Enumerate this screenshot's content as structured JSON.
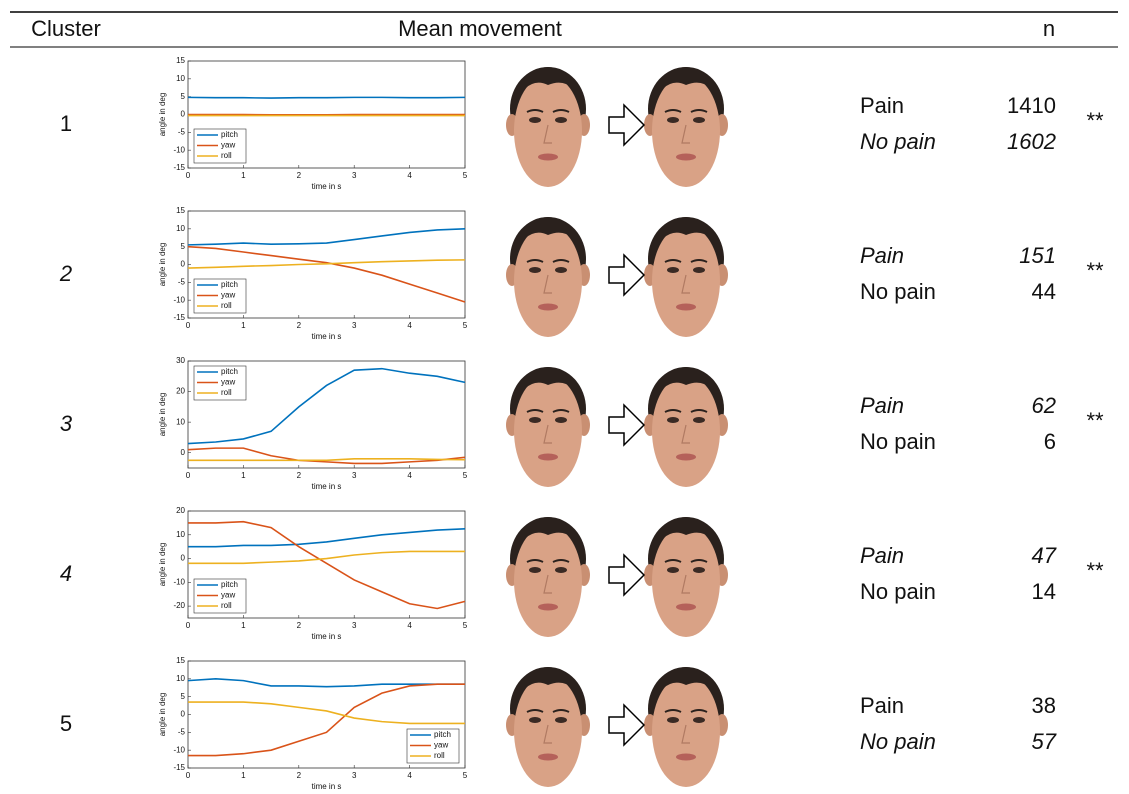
{
  "header": {
    "cluster": "Cluster",
    "movement": "Mean movement",
    "n": "n"
  },
  "table": {
    "rows": [
      {
        "cluster": "1",
        "groups": [
          {
            "label": "Pain",
            "n": 1410
          },
          {
            "label": "No pain",
            "n": 1602
          }
        ],
        "significance": "**"
      },
      {
        "cluster": "2",
        "groups": [
          {
            "label": "Pain",
            "n": 151
          },
          {
            "label": "No pain",
            "n": 44
          }
        ],
        "significance": "**"
      },
      {
        "cluster": "3",
        "groups": [
          {
            "label": "Pain",
            "n": 62
          },
          {
            "label": "No pain",
            "n": 6
          }
        ],
        "significance": "**"
      },
      {
        "cluster": "4",
        "groups": [
          {
            "label": "Pain",
            "n": 47
          },
          {
            "label": "No pain",
            "n": 14
          }
        ],
        "significance": "**"
      },
      {
        "cluster": "5",
        "groups": [
          {
            "label": "Pain",
            "n": 38
          },
          {
            "label": "No pain",
            "n": 57
          }
        ]
      }
    ]
  },
  "chart_data": [
    {
      "type": "line",
      "ylabel": "angle in deg",
      "xlabel": "time in s",
      "legend": "lower left",
      "x": [
        0,
        0.5,
        1,
        1.5,
        2,
        2.5,
        3,
        3.5,
        4,
        4.5,
        5
      ],
      "xlim": [
        0,
        5
      ],
      "xticks": [
        0,
        1,
        2,
        3,
        4,
        5
      ],
      "ylim": [
        -15,
        15
      ],
      "yticks": [
        -15,
        -10,
        -5,
        0,
        5,
        10,
        15
      ],
      "series": [
        {
          "name": "pitch",
          "color": "#0072bd",
          "values": [
            4.8,
            4.7,
            4.7,
            4.6,
            4.7,
            4.7,
            4.8,
            4.8,
            4.7,
            4.7,
            4.8
          ]
        },
        {
          "name": "yaw",
          "color": "#d95319",
          "values": [
            0,
            0,
            0,
            -0.1,
            -0.1,
            -0.1,
            0,
            0,
            0,
            0,
            0
          ]
        },
        {
          "name": "roll",
          "color": "#edb120",
          "values": [
            -0.3,
            -0.3,
            -0.3,
            -0.3,
            -0.3,
            -0.3,
            -0.3,
            -0.3,
            -0.3,
            -0.3,
            -0.3
          ]
        }
      ]
    },
    {
      "type": "line",
      "ylabel": "angle in deg",
      "xlabel": "time in s",
      "legend": "lower left",
      "x": [
        0,
        0.5,
        1,
        1.5,
        2,
        2.5,
        3,
        3.5,
        4,
        4.5,
        5
      ],
      "xlim": [
        0,
        5
      ],
      "xticks": [
        0,
        1,
        2,
        3,
        4,
        5
      ],
      "ylim": [
        -15,
        15
      ],
      "yticks": [
        -15,
        -10,
        -5,
        0,
        5,
        10,
        15
      ],
      "series": [
        {
          "name": "pitch",
          "color": "#0072bd",
          "values": [
            5.5,
            5.7,
            6,
            5.7,
            5.8,
            6,
            7,
            8,
            9,
            9.7,
            10
          ]
        },
        {
          "name": "yaw",
          "color": "#d95319",
          "values": [
            5,
            4.5,
            3.5,
            2.5,
            1.5,
            0.5,
            -1,
            -3,
            -5.5,
            -8,
            -10.5
          ]
        },
        {
          "name": "roll",
          "color": "#edb120",
          "values": [
            -1,
            -0.8,
            -0.5,
            -0.3,
            0,
            0.2,
            0.5,
            0.8,
            1,
            1.2,
            1.3
          ]
        }
      ]
    },
    {
      "type": "line",
      "ylabel": "angle in deg",
      "xlabel": "time in s",
      "legend": "upper left",
      "x": [
        0,
        0.5,
        1,
        1.5,
        2,
        2.5,
        3,
        3.5,
        4,
        4.5,
        5
      ],
      "xlim": [
        0,
        5
      ],
      "xticks": [
        0,
        1,
        2,
        3,
        4,
        5
      ],
      "ylim": [
        -5,
        30
      ],
      "yticks": [
        0,
        10,
        20,
        30
      ],
      "series": [
        {
          "name": "pitch",
          "color": "#0072bd",
          "values": [
            3,
            3.5,
            4.5,
            7,
            15,
            22,
            27,
            27.5,
            26,
            25,
            23
          ]
        },
        {
          "name": "yaw",
          "color": "#d95319",
          "values": [
            1,
            1.5,
            1.5,
            -1,
            -2.5,
            -3,
            -3.5,
            -3.5,
            -3,
            -2.5,
            -1.5
          ]
        },
        {
          "name": "roll",
          "color": "#edb120",
          "values": [
            -2.5,
            -2.5,
            -2.5,
            -2.5,
            -2.5,
            -2.5,
            -2,
            -2,
            -2,
            -2.2,
            -2.3
          ]
        }
      ]
    },
    {
      "type": "line",
      "ylabel": "angle in deg",
      "xlabel": "time in s",
      "legend": "lower left",
      "x": [
        0,
        0.5,
        1,
        1.5,
        2,
        2.5,
        3,
        3.5,
        4,
        4.5,
        5
      ],
      "xlim": [
        0,
        5
      ],
      "xticks": [
        0,
        1,
        2,
        3,
        4,
        5
      ],
      "ylim": [
        -25,
        20
      ],
      "yticks": [
        -20,
        -10,
        0,
        10,
        20
      ],
      "series": [
        {
          "name": "pitch",
          "color": "#0072bd",
          "values": [
            5,
            5,
            5.5,
            5.5,
            6,
            7,
            8.5,
            10,
            11,
            12,
            12.5
          ]
        },
        {
          "name": "yaw",
          "color": "#d95319",
          "values": [
            15,
            15,
            15.5,
            13,
            5,
            -2,
            -9,
            -14,
            -19,
            -21,
            -18
          ]
        },
        {
          "name": "roll",
          "color": "#edb120",
          "values": [
            -2,
            -2,
            -2,
            -1.5,
            -1,
            0,
            1.5,
            2.5,
            3,
            3,
            3
          ]
        }
      ]
    },
    {
      "type": "line",
      "ylabel": "angle in deg",
      "xlabel": "time in s",
      "legend": "lower right",
      "x": [
        0,
        0.5,
        1,
        1.5,
        2,
        2.5,
        3,
        3.5,
        4,
        4.5,
        5
      ],
      "xlim": [
        0,
        5
      ],
      "xticks": [
        0,
        1,
        2,
        3,
        4,
        5
      ],
      "ylim": [
        -15,
        15
      ],
      "yticks": [
        -15,
        -10,
        -5,
        0,
        5,
        10,
        15
      ],
      "series": [
        {
          "name": "pitch",
          "color": "#0072bd",
          "values": [
            9.5,
            10,
            9.5,
            8,
            8,
            7.8,
            8,
            8.5,
            8.5,
            8.5,
            8.5
          ]
        },
        {
          "name": "yaw",
          "color": "#d95319",
          "values": [
            -11.5,
            -11.5,
            -11,
            -10,
            -7.5,
            -5,
            2,
            6,
            8,
            8.5,
            8.5
          ]
        },
        {
          "name": "roll",
          "color": "#edb120",
          "values": [
            3.5,
            3.5,
            3.5,
            3,
            2,
            1,
            -1,
            -2,
            -2.5,
            -2.5,
            -2.5
          ]
        }
      ]
    }
  ]
}
